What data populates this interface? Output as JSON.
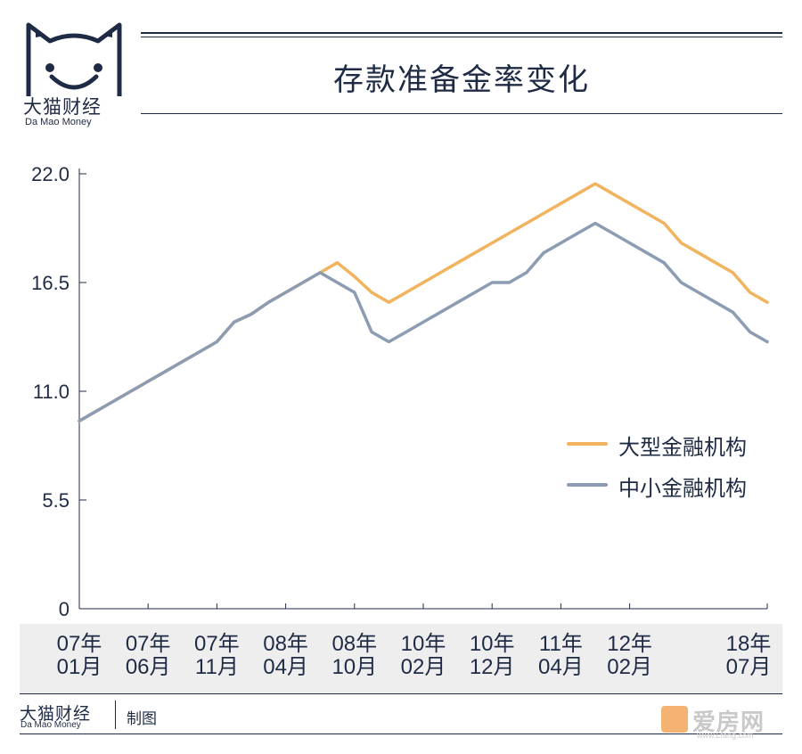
{
  "brand": {
    "name_cn": "大猫财经",
    "name_en": "Da Mao Money"
  },
  "footer": {
    "made_by": "制图"
  },
  "watermark": {
    "text": "爱房网",
    "url": "www.Lfang.com"
  },
  "colors": {
    "large": "#f2b35e",
    "small": "#8c9cb2",
    "ink": "#1f2b45",
    "band": "#eeeeef"
  },
  "chart_data": {
    "type": "line",
    "title": "存款准备金率变化",
    "xlabel": "",
    "ylabel": "",
    "ylim": [
      0,
      22
    ],
    "yticks": [
      "22.0",
      "16.5",
      "11.0",
      "5.5",
      "0"
    ],
    "ytick_values": [
      22,
      16.5,
      11,
      5.5,
      0
    ],
    "xticks": [
      {
        "line1": "07年",
        "line2": "01月",
        "index": 0
      },
      {
        "line1": "07年",
        "line2": "06月",
        "index": 4
      },
      {
        "line1": "07年",
        "line2": "11月",
        "index": 8
      },
      {
        "line1": "08年",
        "line2": "04月",
        "index": 12
      },
      {
        "line1": "08年",
        "line2": "10月",
        "index": 16
      },
      {
        "line1": "10年",
        "line2": "02月",
        "index": 20
      },
      {
        "line1": "10年",
        "line2": "12月",
        "index": 24
      },
      {
        "line1": "11年",
        "line2": "04月",
        "index": 28
      },
      {
        "line1": "12年",
        "line2": "02月",
        "index": 32
      },
      {
        "line1": "18年",
        "line2": "07月",
        "index": 40
      }
    ],
    "legend_position": "right",
    "series": [
      {
        "name": "大型金融机构",
        "color": "#f2b35e",
        "values": [
          9.5,
          10.0,
          10.5,
          11.0,
          11.5,
          12.0,
          12.5,
          13.0,
          13.5,
          14.5,
          14.9,
          15.5,
          16.0,
          16.5,
          17.0,
          17.5,
          16.8,
          16.0,
          15.5,
          16.0,
          16.5,
          17.0,
          17.5,
          18.0,
          18.5,
          19.0,
          19.5,
          20.0,
          20.5,
          21.0,
          21.5,
          21.0,
          20.5,
          20.0,
          19.5,
          18.5,
          18.0,
          17.5,
          17.0,
          16.0,
          15.5
        ]
      },
      {
        "name": "中小金融机构",
        "color": "#8c9cb2",
        "values": [
          9.5,
          10.0,
          10.5,
          11.0,
          11.5,
          12.0,
          12.5,
          13.0,
          13.5,
          14.5,
          14.9,
          15.5,
          16.0,
          16.5,
          17.0,
          16.5,
          16.0,
          14.0,
          13.5,
          14.0,
          14.5,
          15.0,
          15.5,
          16.0,
          16.5,
          16.5,
          17.0,
          18.0,
          18.5,
          19.0,
          19.5,
          19.0,
          18.5,
          18.0,
          17.5,
          16.5,
          16.0,
          15.5,
          15.0,
          14.0,
          13.5
        ]
      }
    ]
  }
}
